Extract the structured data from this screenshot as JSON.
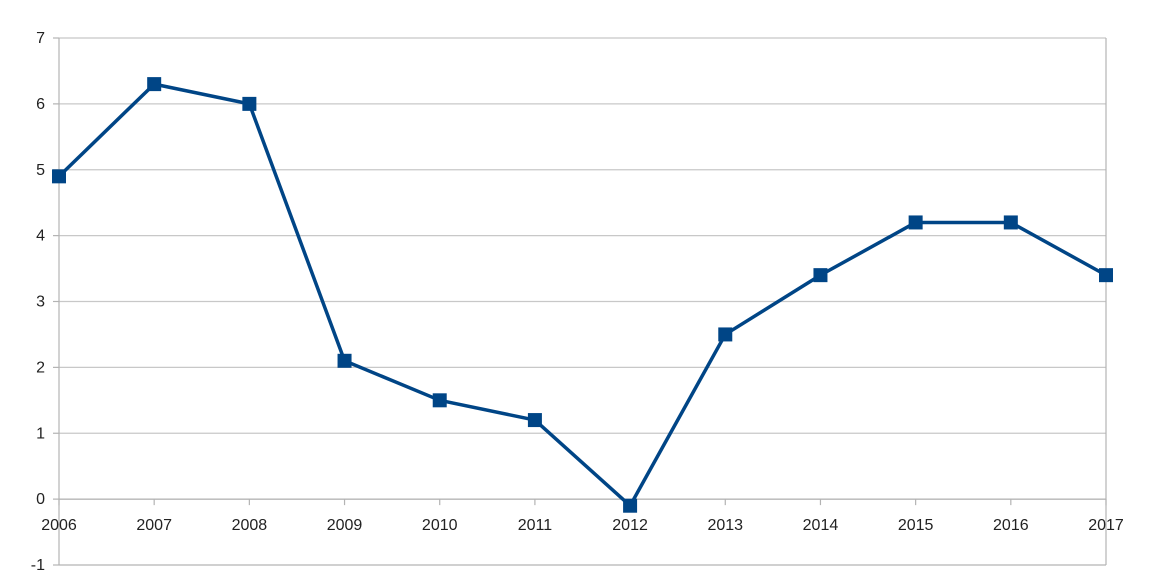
{
  "chart_data": {
    "type": "line",
    "title": "",
    "xlabel": "",
    "ylabel": "",
    "x": [
      "2006",
      "2007",
      "2008",
      "2009",
      "2010",
      "2011",
      "2012",
      "2013",
      "2014",
      "2015",
      "2016",
      "2017"
    ],
    "series": [
      {
        "values": [
          4.9,
          6.3,
          6.0,
          2.1,
          1.5,
          1.2,
          -0.1,
          2.5,
          3.4,
          4.2,
          4.2,
          3.4
        ],
        "color": "#004586",
        "marker": "square"
      }
    ],
    "ylim": [
      -1,
      7
    ],
    "yticks": [
      "-1",
      "0",
      "1",
      "2",
      "3",
      "4",
      "5",
      "6",
      "7"
    ],
    "grid": true,
    "legend": "none"
  }
}
